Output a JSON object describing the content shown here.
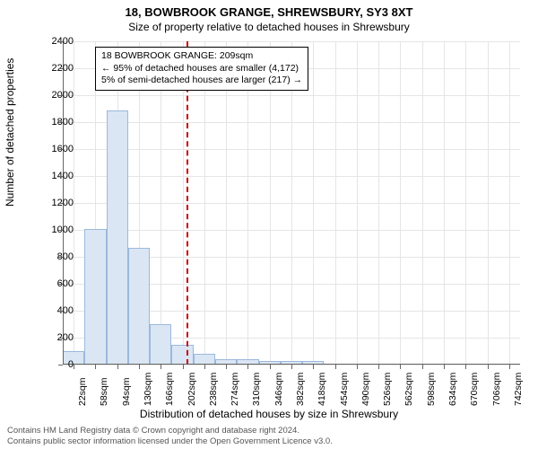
{
  "title": "18, BOWBROOK GRANGE, SHREWSBURY, SY3 8XT",
  "subtitle": "Size of property relative to detached houses in Shrewsbury",
  "y_axis_label": "Number of detached properties",
  "x_axis_label": "Distribution of detached houses by size in Shrewsbury",
  "callout": {
    "line1": "18 BOWBROOK GRANGE: 209sqm",
    "line2": "← 95% of detached houses are smaller (4,172)",
    "line3": "5% of semi-detached houses are larger (217) →"
  },
  "footer": {
    "line1": "Contains HM Land Registry data © Crown copyright and database right 2024.",
    "line2": "Contains public sector information licensed under the Open Government Licence v3.0."
  },
  "chart": {
    "type": "histogram",
    "background_color": "#ffffff",
    "grid_color": "#e5e5e5",
    "axis_color": "#666666",
    "bar_fill": "#dbe6f4",
    "bar_border": "#9bb8dd",
    "reference_line_color": "#cc0000",
    "ylim": [
      0,
      2400
    ],
    "yticks": [
      0,
      200,
      400,
      600,
      800,
      1000,
      1200,
      1400,
      1600,
      1800,
      2000,
      2200,
      2400
    ],
    "xtick_labels": [
      "22sqm",
      "58sqm",
      "94sqm",
      "130sqm",
      "166sqm",
      "202sqm",
      "238sqm",
      "274sqm",
      "310sqm",
      "346sqm",
      "382sqm",
      "418sqm",
      "454sqm",
      "490sqm",
      "526sqm",
      "562sqm",
      "598sqm",
      "634sqm",
      "670sqm",
      "706sqm",
      "742sqm"
    ],
    "xtick_positions_sqm": [
      22,
      58,
      94,
      130,
      166,
      202,
      238,
      274,
      310,
      346,
      382,
      418,
      454,
      490,
      526,
      562,
      598,
      634,
      670,
      706,
      742
    ],
    "x_domain_sqm": [
      4,
      760
    ],
    "reference_line_x_sqm": 209,
    "bars": [
      {
        "x_start_sqm": 4,
        "x_end_sqm": 40,
        "value": 100
      },
      {
        "x_start_sqm": 40,
        "x_end_sqm": 76,
        "value": 1010
      },
      {
        "x_start_sqm": 76,
        "x_end_sqm": 112,
        "value": 1890
      },
      {
        "x_start_sqm": 112,
        "x_end_sqm": 148,
        "value": 870
      },
      {
        "x_start_sqm": 148,
        "x_end_sqm": 184,
        "value": 300
      },
      {
        "x_start_sqm": 184,
        "x_end_sqm": 220,
        "value": 150
      },
      {
        "x_start_sqm": 220,
        "x_end_sqm": 256,
        "value": 80
      },
      {
        "x_start_sqm": 256,
        "x_end_sqm": 292,
        "value": 40
      },
      {
        "x_start_sqm": 292,
        "x_end_sqm": 328,
        "value": 40
      },
      {
        "x_start_sqm": 328,
        "x_end_sqm": 364,
        "value": 30
      },
      {
        "x_start_sqm": 364,
        "x_end_sqm": 400,
        "value": 30
      },
      {
        "x_start_sqm": 400,
        "x_end_sqm": 436,
        "value": 25
      }
    ],
    "title_fontsize": 13,
    "subtitle_fontsize": 12,
    "label_fontsize": 12,
    "tick_fontsize": 11,
    "callout_fontsize": 10.5,
    "footer_fontsize": 9.5
  }
}
